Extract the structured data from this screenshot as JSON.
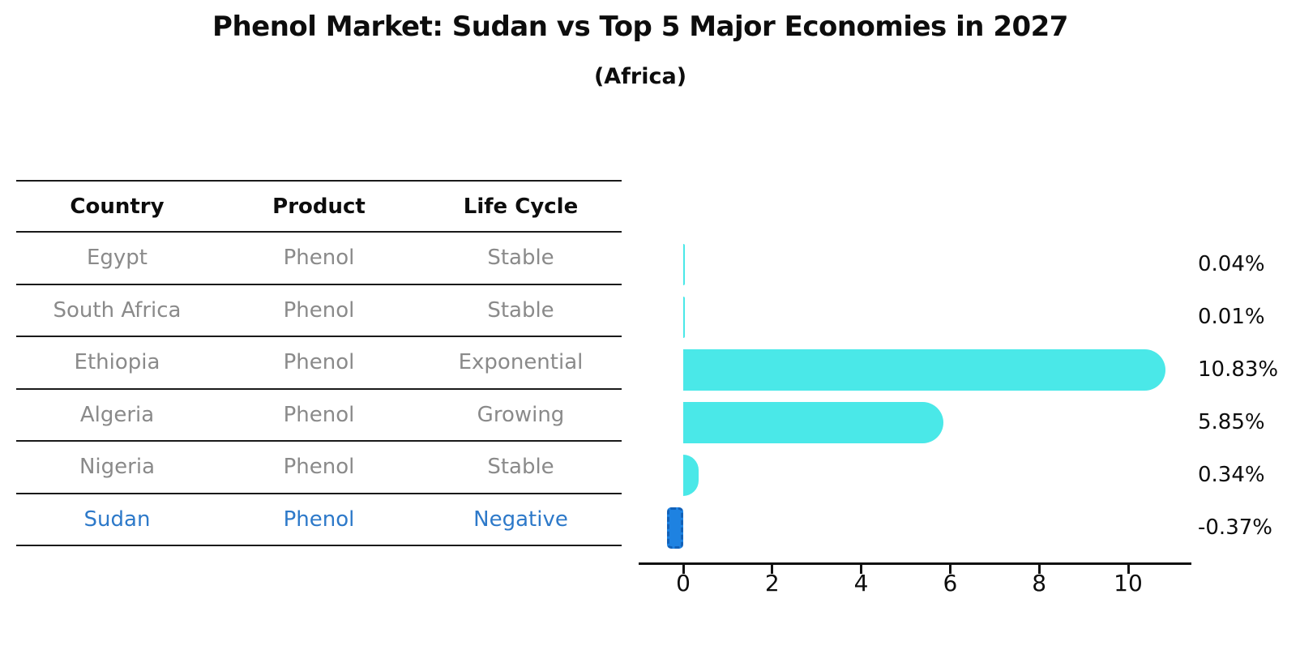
{
  "title": "Phenol Market: Sudan vs Top 5 Major Economies in 2027",
  "subtitle": "(Africa)",
  "table": {
    "headers": [
      "Country",
      "Product",
      "Life Cycle"
    ],
    "rows": [
      {
        "country": "Egypt",
        "product": "Phenol",
        "life_cycle": "Stable",
        "highlight": false
      },
      {
        "country": "South Africa",
        "product": "Phenol",
        "life_cycle": "Stable",
        "highlight": false
      },
      {
        "country": "Ethiopia",
        "product": "Phenol",
        "life_cycle": "Exponential",
        "highlight": false
      },
      {
        "country": "Algeria",
        "product": "Phenol",
        "life_cycle": "Growing",
        "highlight": false
      },
      {
        "country": "Nigeria",
        "product": "Phenol",
        "life_cycle": "Stable",
        "highlight": false
      },
      {
        "country": "Sudan",
        "product": "Phenol",
        "life_cycle": "Negative",
        "highlight": true
      }
    ]
  },
  "chart_data": {
    "type": "bar",
    "orientation": "horizontal",
    "title": "Phenol Market: Sudan vs Top 5 Major Economies in 2027 (Africa)",
    "categories": [
      "Egypt",
      "South Africa",
      "Ethiopia",
      "Algeria",
      "Nigeria",
      "Sudan"
    ],
    "values": [
      0.04,
      0.01,
      10.83,
      5.85,
      0.34,
      -0.37
    ],
    "value_labels": [
      "0.04%",
      "0.01%",
      "10.83%",
      "5.85%",
      "0.34%",
      "-0.37%"
    ],
    "unit": "percent",
    "x_ticks": [
      0,
      2,
      4,
      6,
      8,
      10
    ],
    "x_tick_labels": [
      "0",
      "2",
      "4",
      "6",
      "8",
      "10"
    ],
    "xlim": [
      -1.0,
      11.45
    ],
    "grid": false,
    "legend": "none",
    "highlight_index": 5,
    "colors": {
      "bar_default": "#4ae8e8",
      "bar_highlight": "#1e82e1",
      "bar_highlight_border": "#1261b8",
      "highlight_text": "#2d79c9",
      "body_text": "#8a8a8a",
      "axis_text": "#0d0d0d"
    }
  }
}
